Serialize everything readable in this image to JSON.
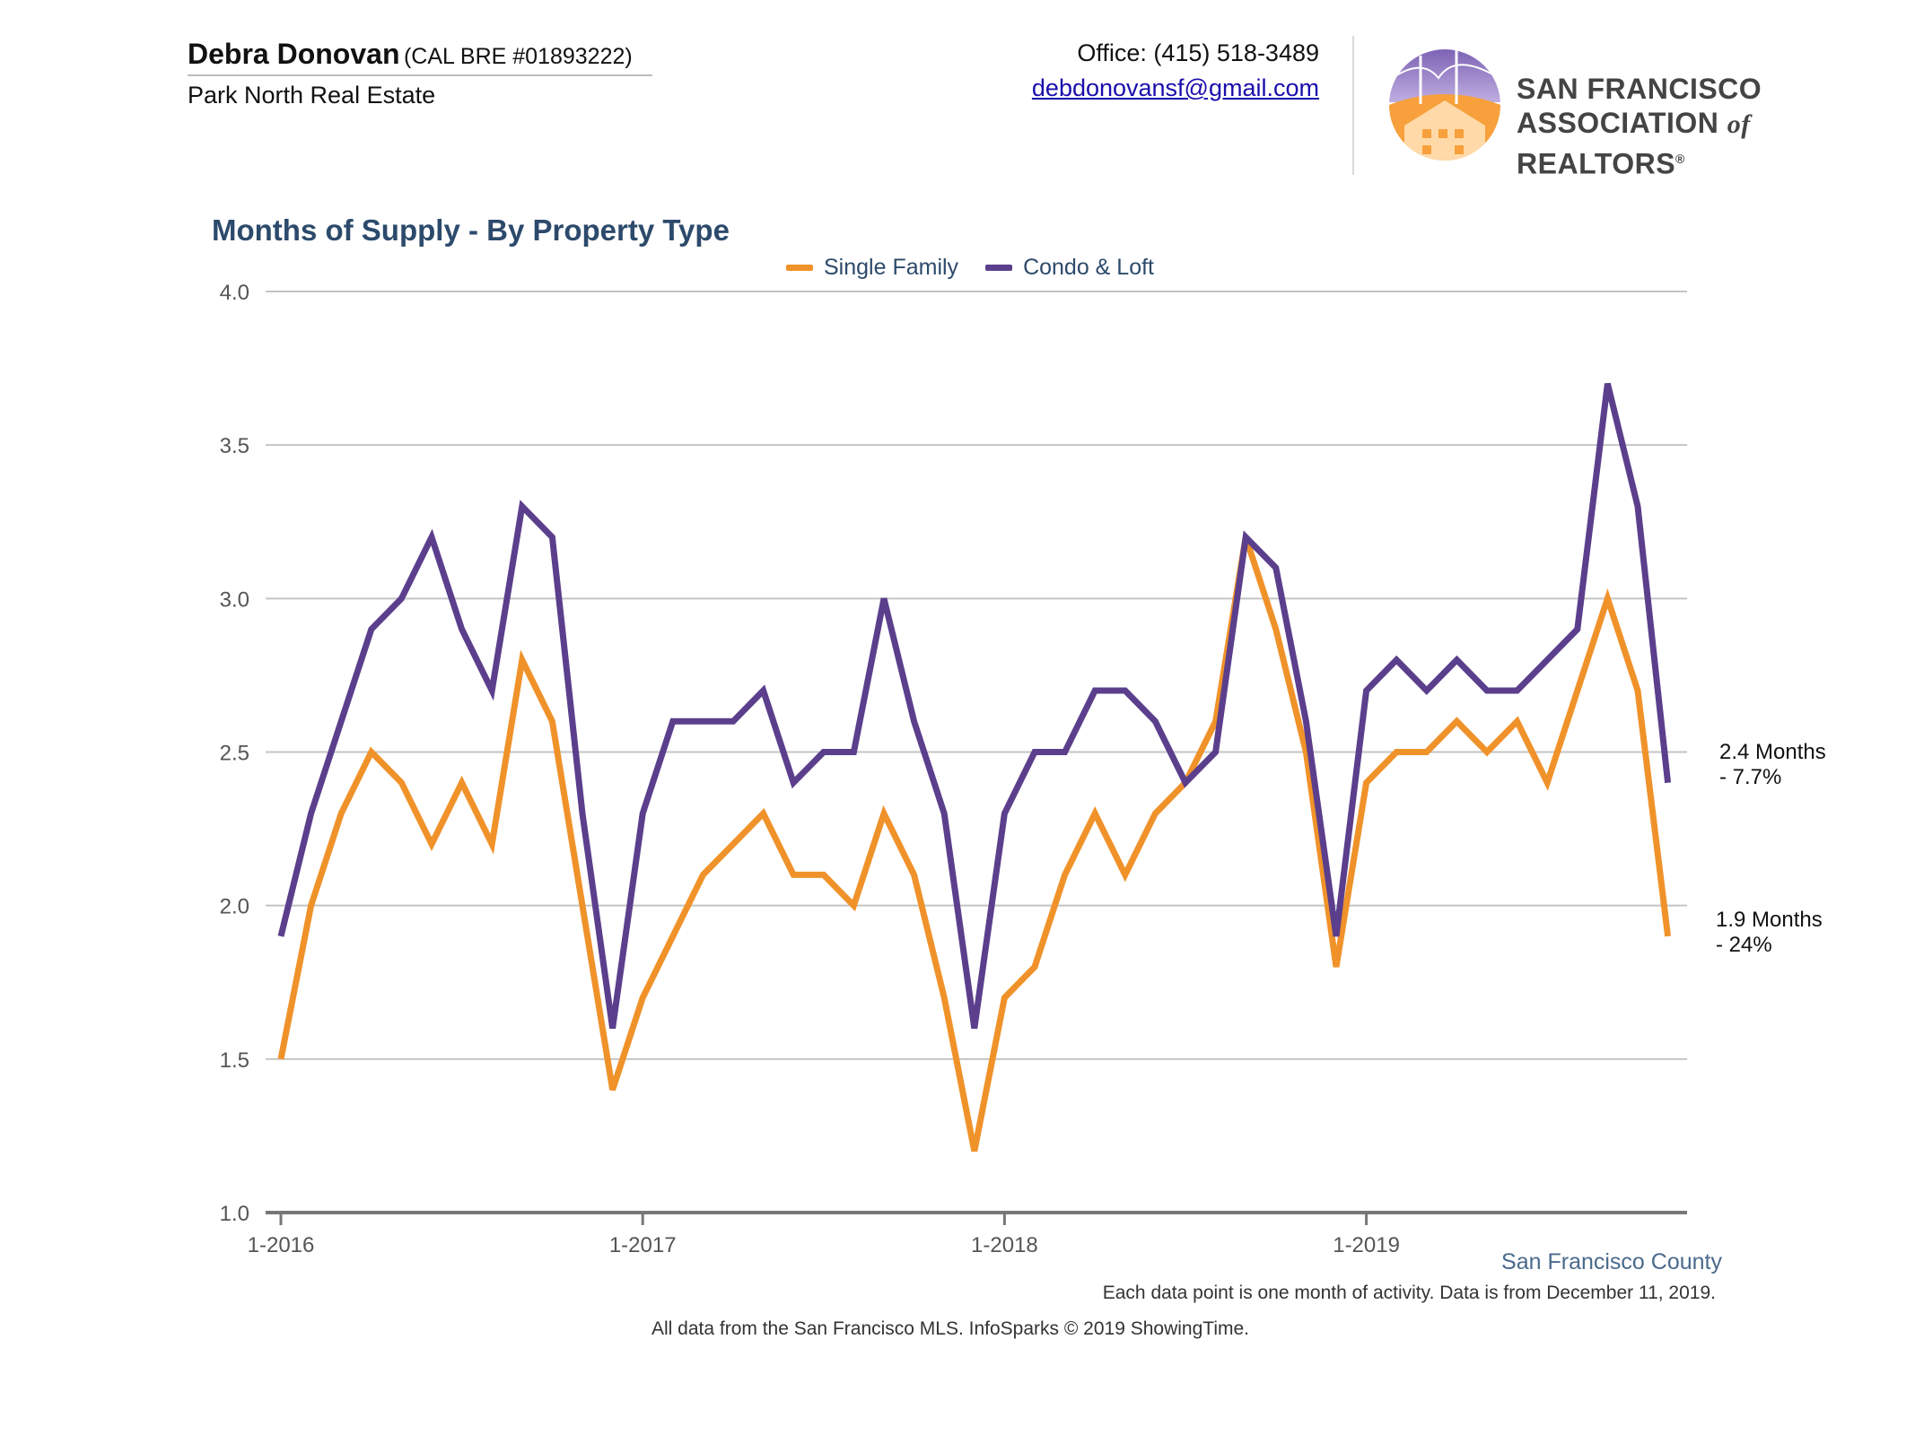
{
  "header": {
    "agent_name": "Debra Donovan",
    "agent_license": "(CAL BRE #01893222)",
    "company": "Park North Real Estate",
    "phone": "Office: (415) 518-3489",
    "email": "debdonovansf@gmail.com",
    "logo_line1": "SAN FRANCISCO",
    "logo_line2_a": "ASSOCIATION",
    "logo_line2_of": "of",
    "logo_line2_b": "REALTORS",
    "logo_reg": "®"
  },
  "footer": {
    "region": "San Francisco County",
    "note": "Each data point is one month of activity. Data is from December 11, 2019.",
    "source": "All data from the San Francisco MLS. InfoSparks © 2019 ShowingTime."
  },
  "end_labels": {
    "condo_line1": "2.4 Months",
    "condo_line2": "- 7.7%",
    "single_line1": "1.9 Months",
    "single_line2": "- 24%"
  },
  "chart_data": {
    "type": "line",
    "title": "Months of Supply - By Property Type",
    "xlabel": "",
    "ylabel": "",
    "ylim": [
      1.0,
      4.0
    ],
    "yticks": [
      "1.0",
      "1.5",
      "2.0",
      "2.5",
      "3.0",
      "3.5",
      "4.0"
    ],
    "xtick_labels": [
      {
        "label": "1-2016",
        "index": 0
      },
      {
        "label": "1-2017",
        "index": 12
      },
      {
        "label": "1-2018",
        "index": 24
      },
      {
        "label": "1-2019",
        "index": 36
      }
    ],
    "x": [
      "1-2016",
      "2-2016",
      "3-2016",
      "4-2016",
      "5-2016",
      "6-2016",
      "7-2016",
      "8-2016",
      "9-2016",
      "10-2016",
      "11-2016",
      "12-2016",
      "1-2017",
      "2-2017",
      "3-2017",
      "4-2017",
      "5-2017",
      "6-2017",
      "7-2017",
      "8-2017",
      "9-2017",
      "10-2017",
      "11-2017",
      "12-2017",
      "1-2018",
      "2-2018",
      "3-2018",
      "4-2018",
      "5-2018",
      "6-2018",
      "7-2018",
      "8-2018",
      "9-2018",
      "10-2018",
      "11-2018",
      "12-2018",
      "1-2019",
      "2-2019",
      "3-2019",
      "4-2019",
      "5-2019",
      "6-2019",
      "7-2019",
      "8-2019",
      "9-2019",
      "10-2019",
      "11-2019"
    ],
    "grid": true,
    "legend_position": "top-center",
    "series": [
      {
        "name": "Single Family",
        "color": "#f0922a",
        "values": [
          1.5,
          2.0,
          2.3,
          2.5,
          2.4,
          2.2,
          2.4,
          2.2,
          2.8,
          2.6,
          2.0,
          1.4,
          1.7,
          1.9,
          2.1,
          2.2,
          2.3,
          2.1,
          2.1,
          2.0,
          2.3,
          2.1,
          1.7,
          1.2,
          1.7,
          1.8,
          2.1,
          2.3,
          2.1,
          2.3,
          2.4,
          2.6,
          3.2,
          2.9,
          2.5,
          1.8,
          2.4,
          2.5,
          2.5,
          2.6,
          2.5,
          2.6,
          2.4,
          2.7,
          3.0,
          2.7,
          1.9
        ]
      },
      {
        "name": "Condo & Loft",
        "color": "#5b3f8c",
        "values": [
          1.9,
          2.3,
          2.6,
          2.9,
          3.0,
          3.2,
          2.9,
          2.7,
          3.3,
          3.2,
          2.3,
          1.6,
          2.3,
          2.6,
          2.6,
          2.6,
          2.7,
          2.4,
          2.5,
          2.5,
          3.0,
          2.6,
          2.3,
          1.6,
          2.3,
          2.5,
          2.5,
          2.7,
          2.7,
          2.6,
          2.4,
          2.5,
          3.2,
          3.1,
          2.6,
          1.9,
          2.7,
          2.8,
          2.7,
          2.8,
          2.7,
          2.7,
          2.8,
          2.9,
          3.7,
          3.3,
          2.4
        ]
      }
    ]
  }
}
